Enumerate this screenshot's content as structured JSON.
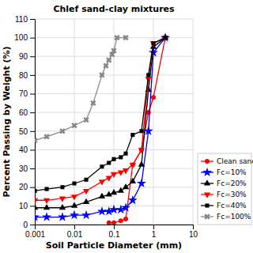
{
  "chart_data": {
    "type": "line",
    "title": "Chlef sand-clay mixtures",
    "x_label": "Soil Particle Diameter (mm)",
    "y_label": "Percent Passing by Weight (%)",
    "log": "x",
    "xlim": [
      0.001,
      10
    ],
    "xticks": [
      0.001,
      0.01,
      0.1,
      1,
      10
    ],
    "ylim": [
      0,
      110
    ],
    "yticks": [
      0,
      10,
      20,
      30,
      40,
      50,
      60,
      70,
      80,
      90,
      100,
      110
    ],
    "grid": true,
    "legend": "lower right",
    "series": [
      {
        "name": "Clean sand",
        "color": "red",
        "marker": "circle",
        "line_style": "solid",
        "x": [
          0.075,
          0.1,
          0.15,
          0.2,
          0.3,
          0.5,
          0.75,
          1.0,
          2.0
        ],
        "values": [
          1,
          1,
          2,
          3,
          32,
          40,
          60,
          68,
          100
        ]
      },
      {
        "name": "Fc=10%",
        "color": "blue",
        "marker": "star",
        "line_style": "solid",
        "x": [
          0.001,
          0.002,
          0.005,
          0.01,
          0.02,
          0.05,
          0.075,
          0.1,
          0.15,
          0.2,
          0.3,
          0.5,
          0.75,
          1.0,
          2.0
        ],
        "values": [
          4,
          4,
          4,
          5,
          5,
          7,
          7,
          8,
          8,
          9,
          13,
          22,
          50,
          92,
          100
        ]
      },
      {
        "name": "Fc=20%",
        "color": "black",
        "marker": "triangle-up",
        "line_style": "solid",
        "x": [
          0.001,
          0.002,
          0.005,
          0.01,
          0.02,
          0.05,
          0.075,
          0.1,
          0.15,
          0.2,
          0.3,
          0.5,
          0.75,
          1.0,
          2.0
        ],
        "values": [
          9,
          9,
          9,
          10,
          12,
          15,
          16,
          17,
          18,
          20,
          23,
          32,
          72,
          95,
          100
        ]
      },
      {
        "name": "Fc=30%",
        "color": "red",
        "marker": "triangle-down",
        "line_style": "solid",
        "x": [
          0.001,
          0.002,
          0.005,
          0.01,
          0.02,
          0.05,
          0.075,
          0.1,
          0.15,
          0.2,
          0.3,
          0.5,
          0.75,
          1.0,
          2.0
        ],
        "values": [
          13,
          13,
          14,
          15,
          18,
          23,
          25,
          27,
          28,
          29,
          32,
          40,
          78,
          97,
          100
        ]
      },
      {
        "name": "Fc=40%",
        "color": "black",
        "marker": "square",
        "line_style": "solid",
        "x": [
          0.001,
          0.002,
          0.005,
          0.01,
          0.02,
          0.05,
          0.075,
          0.1,
          0.15,
          0.2,
          0.3,
          0.5,
          0.75,
          1.0,
          2.0
        ],
        "values": [
          18,
          19,
          20,
          22,
          24,
          31,
          33,
          35,
          36,
          38,
          48,
          50,
          80,
          97,
          100
        ]
      },
      {
        "name": "Fc=100%",
        "color": "#888888",
        "marker": "x",
        "line_style": "solid",
        "x": [
          0.001,
          0.002,
          0.005,
          0.01,
          0.02,
          0.03,
          0.05,
          0.063,
          0.075,
          0.09,
          0.1,
          0.12,
          0.2
        ],
        "values": [
          45,
          47,
          50,
          53,
          56,
          65,
          80,
          85,
          88,
          91,
          93,
          100,
          100
        ]
      }
    ]
  }
}
